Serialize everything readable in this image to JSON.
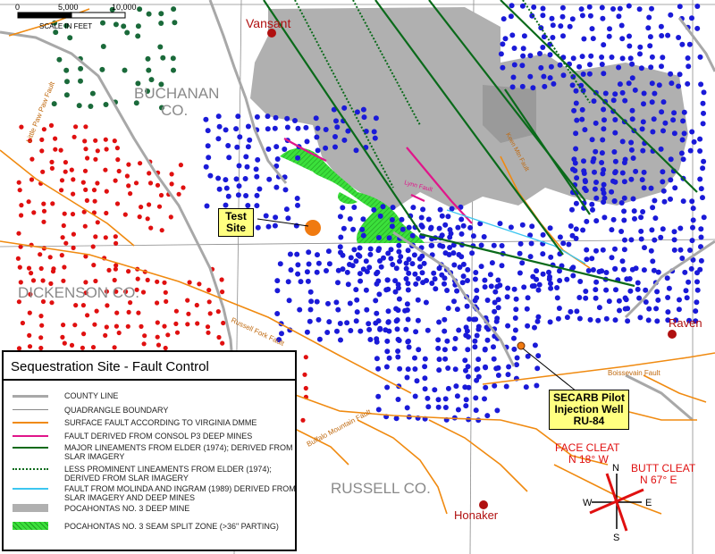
{
  "scale_bar": {
    "ticks": [
      "0",
      "5,000",
      "10,000"
    ],
    "label": "SCALE IN FEET"
  },
  "counties": {
    "buchanan_line1": "BUCHANAN",
    "buchanan_line2": "CO.",
    "dickenson": "DICKENSON CO.",
    "russell": "RUSSELL CO."
  },
  "towns": {
    "vansant": "Vansant",
    "raven": "Raven",
    "honaker": "Honaker"
  },
  "faults": {
    "little_paw_paw": "Little Paw Paw Fault",
    "russell_fork": "Russell Fork Fault",
    "buffalo_mountain": "Buffalo Mountain Fault",
    "boissevain": "Boissevain Fault",
    "keen_mountain": "Keen Mtn Fault",
    "lynn": "Lynn Fault"
  },
  "callouts": {
    "test_site_line1": "Test",
    "test_site_line2": "Site",
    "well_line1": "SECARB Pilot",
    "well_line2": "Injection Well",
    "well_line3": "RU-84"
  },
  "cleats": {
    "face_line1": "FACE CLEAT",
    "face_line2": "N 18° W",
    "butt_line1": "BUTT CLEAT",
    "butt_line2": "N 67° E"
  },
  "compass": {
    "n": "N",
    "e": "E",
    "s": "S",
    "w": "W"
  },
  "legend": {
    "title": "Sequestration Site - Fault Control",
    "items": [
      {
        "text": "COUNTY LINE",
        "color": "#a8a8a8",
        "style": "thick"
      },
      {
        "text": "QUADRANGLE BOUNDARY",
        "color": "#888888",
        "style": "thin"
      },
      {
        "text": "SURFACE FAULT ACCORDING TO VIRGINIA DMME",
        "color": "#f08a10",
        "style": "solid"
      },
      {
        "text": "FAULT DERIVED FROM CONSOL P3 DEEP MINES",
        "color": "#e0168a",
        "style": "solid"
      },
      {
        "text": "MAJOR LINEAMENTS FROM ELDER (1974); DERIVED FROM SLAR IMAGERY",
        "color": "#0a6a1a",
        "style": "solid"
      },
      {
        "text": "LESS PROMINENT LINEAMENTS FROM ELDER (1974); DERIVED FROM SLAR IMAGERY",
        "color": "#0a6a1a",
        "style": "dotted"
      },
      {
        "text": "FAULT FROM MOLINDA AND INGRAM (1989) DERIVED FROM SLAR IMAGERY AND DEEP MINES",
        "color": "#3cc6f0",
        "style": "solid"
      },
      {
        "text": "POCAHONTAS NO. 3 DEEP MINE",
        "color": "#b0b0b0",
        "style": "box"
      },
      {
        "text": "POCAHONTAS NO. 3 SEAM SPLIT ZONE (>36\" PARTING)",
        "color": "#3be03b",
        "style": "hatch"
      }
    ]
  },
  "colors": {
    "blue_wells": "#1a1ad8",
    "red_wells": "#e01010",
    "green_wells": "#1a6a3a",
    "mine": "#b0b0b0",
    "split_zone": "#3be03b",
    "surface_fault": "#f08a10",
    "consol_fault": "#e0168a",
    "lineament": "#0a6a1a",
    "molinda_fault": "#3cc6f0",
    "test_site": "#f07a10",
    "callout_bg": "#ffff80",
    "town": "#b01010"
  }
}
